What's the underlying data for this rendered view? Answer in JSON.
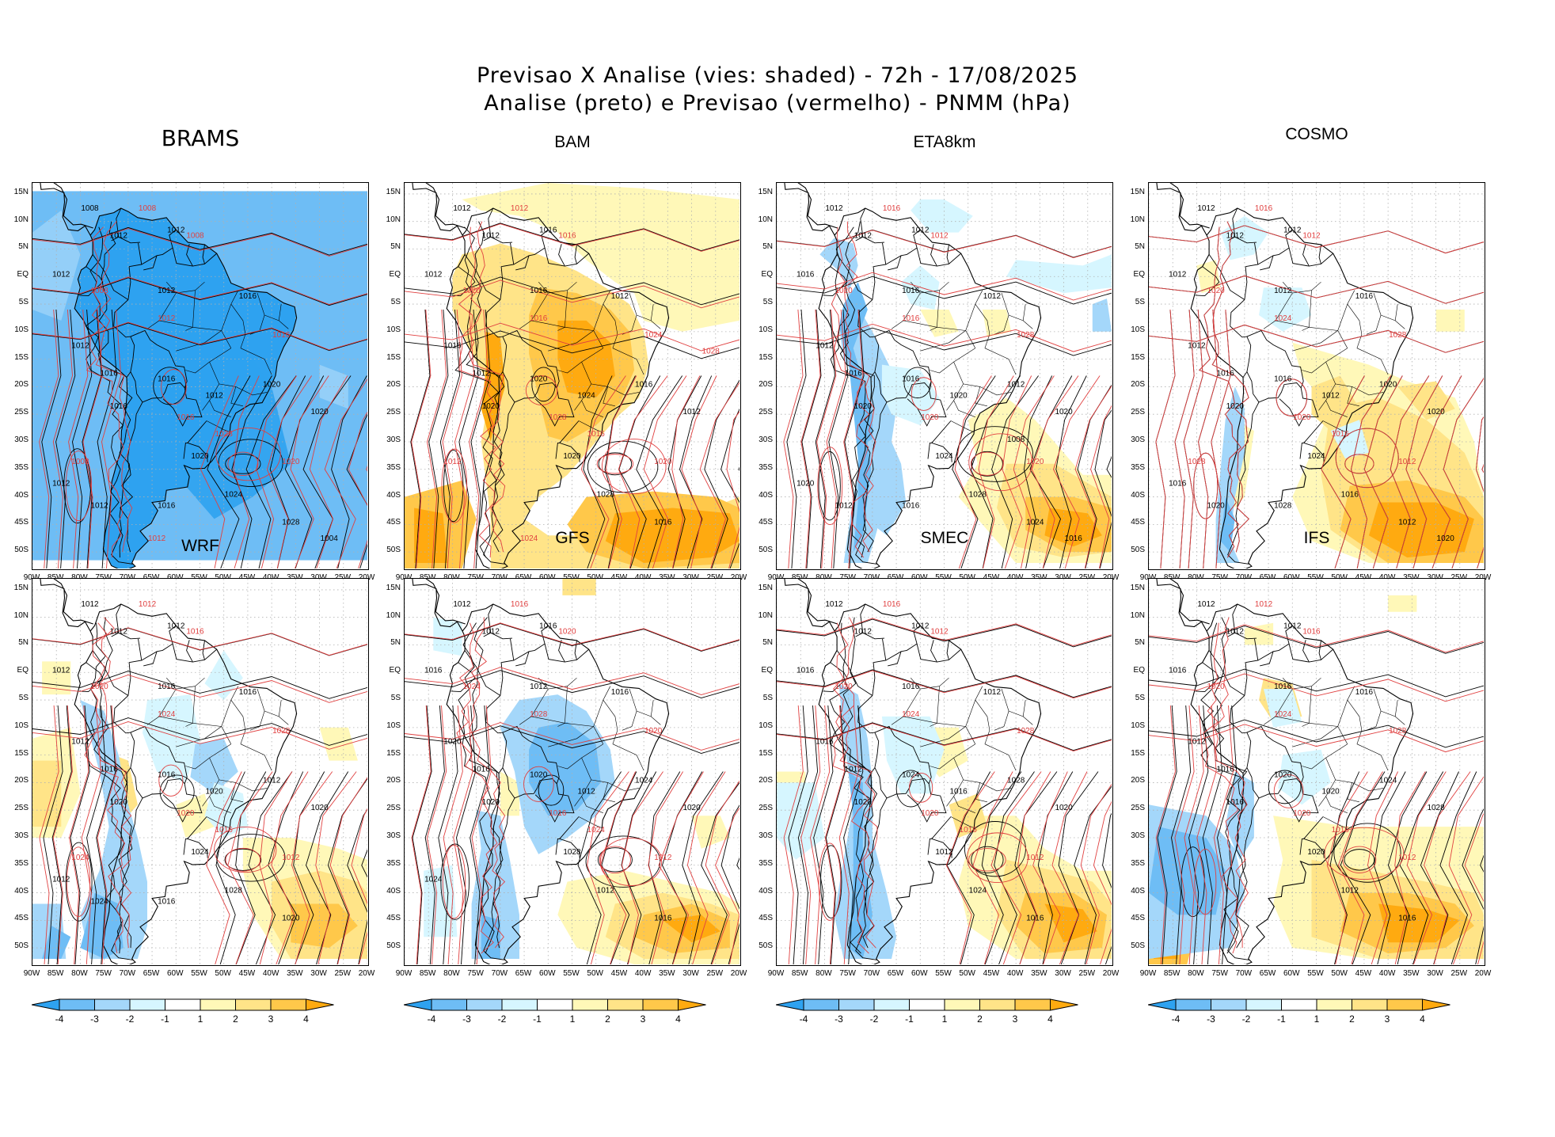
{
  "title": {
    "line1": "Previsao X Analise (vies: shaded) - 72h - 17/08/2025",
    "line2": "Analise (preto) e Previsao (vermelho) - PNMM (hPa)"
  },
  "axes": {
    "lat_labels": [
      "15N",
      "10N",
      "5N",
      "EQ",
      "5S",
      "10S",
      "15S",
      "20S",
      "25S",
      "30S",
      "35S",
      "40S",
      "45S",
      "50S"
    ],
    "lon_labels": [
      "90W",
      "85W",
      "80W",
      "75W",
      "70W",
      "65W",
      "60W",
      "55W",
      "50W",
      "45W",
      "40W",
      "35W",
      "30W",
      "25W",
      "20W"
    ]
  },
  "colorbar": {
    "labels": [
      "-4",
      "-3",
      "-2",
      "-1",
      "1",
      "2",
      "3",
      "4"
    ],
    "colors": [
      "#2ea2f0",
      "#6ebdf5",
      "#a4d7fa",
      "#d6f6ff",
      "#ffffff",
      "#fff8b8",
      "#ffe488",
      "#ffc84a",
      "#ffaa10"
    ]
  },
  "colors": {
    "analysis": "#000000",
    "forecast": "#e04040",
    "ocean_grid": "#b0b0b0"
  },
  "panels": [
    {
      "model": "BRAMS",
      "style": "blue",
      "black_labels": [
        "1008",
        "1012",
        "1012",
        "1012",
        "1012",
        "1016",
        "1012",
        "1016",
        "1012",
        "1016",
        "1016",
        "1020",
        "1020",
        "1020",
        "1024",
        "1028",
        "1012",
        "1012",
        "1016",
        "1004"
      ],
      "red_labels": [
        "1008",
        "1008",
        "1008",
        "1012",
        "1016",
        "1016",
        "1020",
        "1028",
        "1008",
        "1012"
      ]
    },
    {
      "model": "BAM",
      "style": "orange",
      "black_labels": [
        "1012",
        "1012",
        "1016",
        "1012",
        "1016",
        "1012",
        "1016",
        "1012",
        "1024",
        "1020",
        "1020",
        "1016",
        "1012",
        "1020",
        "1028",
        "1016"
      ],
      "red_labels": [
        "1012",
        "1016",
        "1020",
        "1016",
        "1024",
        "1028",
        "1020",
        "1016",
        "1012",
        "1024",
        "1028"
      ]
    },
    {
      "model": "ETA8km",
      "style": "eta",
      "black_labels": [
        "1012",
        "1012",
        "1012",
        "1016",
        "1016",
        "1012",
        "1012",
        "1016",
        "1020",
        "1020",
        "1016",
        "1012",
        "1020",
        "1024",
        "1028",
        "1024",
        "1020",
        "1012",
        "1016",
        "1016",
        "1008"
      ],
      "red_labels": [
        "1016",
        "1012",
        "1020",
        "1016",
        "1028",
        "1020",
        "1020"
      ]
    },
    {
      "model": "COSMO",
      "style": "cosmo",
      "black_labels": [
        "1012",
        "1012",
        "1012",
        "1012",
        "1012",
        "1016",
        "1012",
        "1016",
        "1012",
        "1020",
        "1016",
        "1020",
        "1020",
        "1024",
        "1016",
        "1012",
        "1016",
        "1020",
        "1028",
        "1020"
      ],
      "red_labels": [
        "1016",
        "1012",
        "1020",
        "1024",
        "1028",
        "1020",
        "1012",
        "1016",
        "1028"
      ]
    },
    {
      "model": "WRF",
      "style": "wrf",
      "black_labels": [
        "1012",
        "1012",
        "1012",
        "1012",
        "1016",
        "1016",
        "1012",
        "1016",
        "1020",
        "1020",
        "1016",
        "1012",
        "1020",
        "1024",
        "1028",
        "1020",
        "1012",
        "1024",
        "1016"
      ],
      "red_labels": [
        "1012",
        "1016",
        "1020",
        "1024",
        "1028",
        "1020",
        "1012",
        "1016",
        "1024"
      ]
    },
    {
      "model": "GFS",
      "style": "gfs",
      "black_labels": [
        "1012",
        "1012",
        "1016",
        "1016",
        "1012",
        "1016",
        "1020",
        "1016",
        "1012",
        "1020",
        "1020",
        "1024",
        "1020",
        "1028",
        "1012",
        "1016",
        "1024"
      ],
      "red_labels": [
        "1016",
        "1020",
        "1024",
        "1028",
        "1020",
        "1016",
        "1012",
        "1024"
      ]
    },
    {
      "model": "SMEC",
      "style": "smec",
      "black_labels": [
        "1012",
        "1012",
        "1012",
        "1016",
        "1016",
        "1012",
        "1016",
        "1012",
        "1016",
        "1020",
        "1024",
        "1028",
        "1020",
        "1012",
        "1024",
        "1016"
      ],
      "red_labels": [
        "1016",
        "1012",
        "1020",
        "1024",
        "1028",
        "1020",
        "1012",
        "1016"
      ]
    },
    {
      "model": "IFS",
      "style": "ifs",
      "black_labels": [
        "1012",
        "1012",
        "1012",
        "1016",
        "1016",
        "1016",
        "1012",
        "1016",
        "1020",
        "1016",
        "1020",
        "1024",
        "1028",
        "1020",
        "1012",
        "1016"
      ],
      "red_labels": [
        "1012",
        "1016",
        "1020",
        "1024",
        "1028",
        "1020",
        "1012",
        "1016"
      ]
    }
  ]
}
